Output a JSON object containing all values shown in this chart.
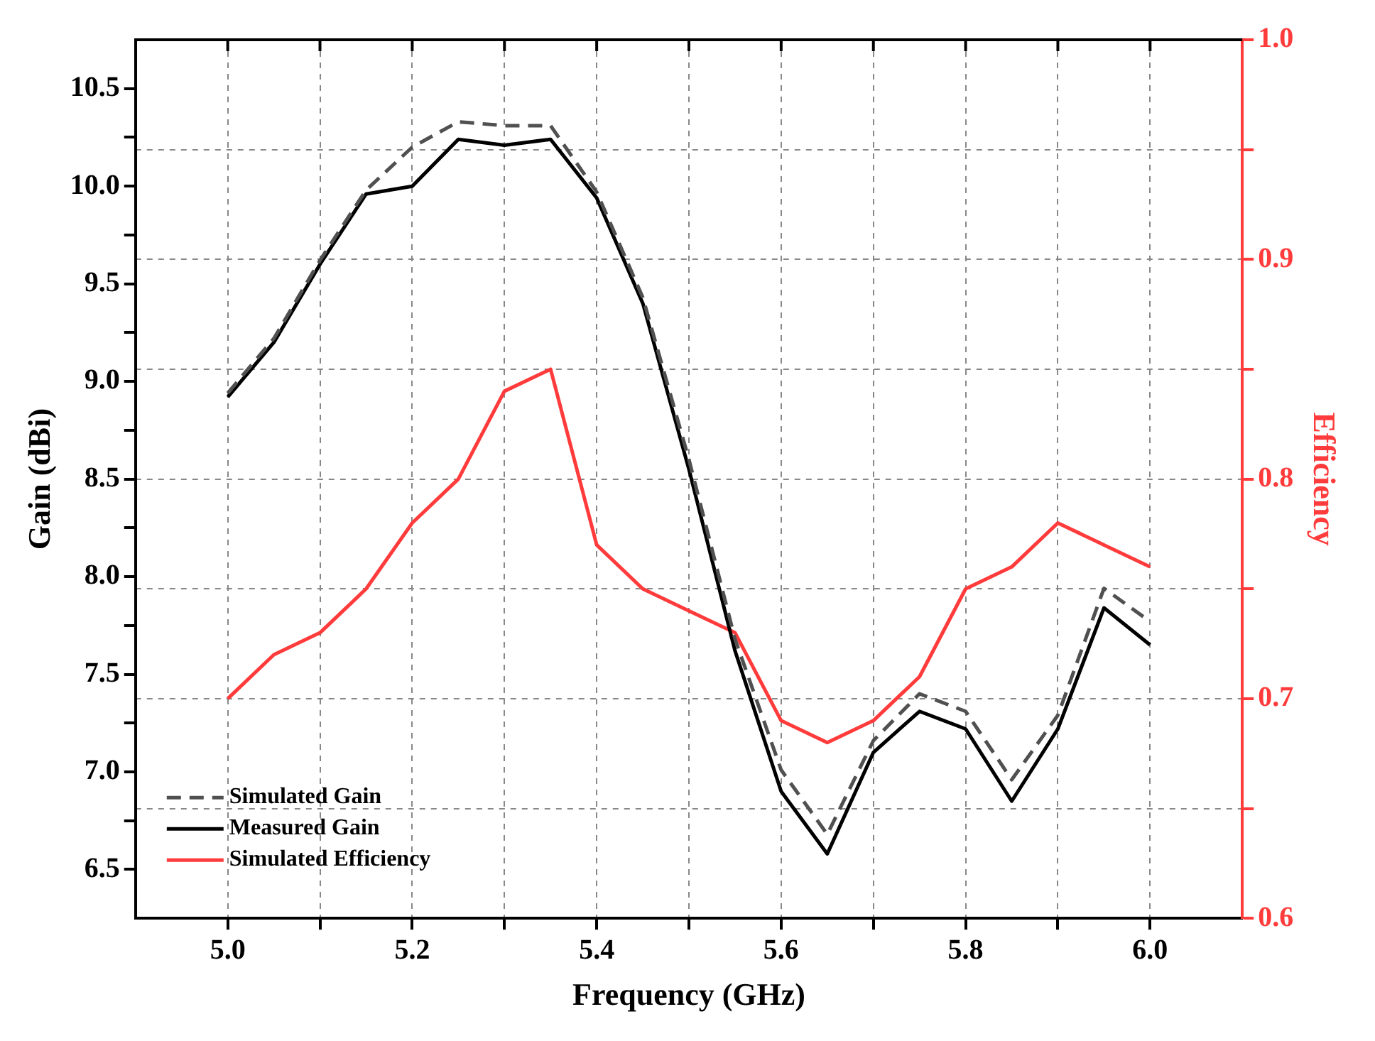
{
  "chart_data": {
    "type": "line",
    "xlabel": "Frequency (GHz)",
    "ylabel": "Gain (dBi)",
    "y2label": "Efficiency",
    "x": [
      5.0,
      5.05,
      5.1,
      5.15,
      5.2,
      5.25,
      5.3,
      5.35,
      5.4,
      5.45,
      5.5,
      5.55,
      5.6,
      5.65,
      5.7,
      5.75,
      5.8,
      5.85,
      5.9,
      5.95,
      6.0
    ],
    "series": [
      {
        "name": "Simulated Gain",
        "color": "#505050",
        "line_style": "dashed",
        "values": [
          8.94,
          9.22,
          9.62,
          9.98,
          10.2,
          10.33,
          10.31,
          10.31,
          9.97,
          9.43,
          8.6,
          7.68,
          7.01,
          6.68,
          7.16,
          7.4,
          7.31,
          6.96,
          7.29,
          7.94,
          7.77
        ]
      },
      {
        "name": "Measured Gain",
        "color": "#000000",
        "line_style": "solid",
        "values": [
          8.92,
          9.2,
          9.6,
          9.96,
          10.0,
          10.24,
          10.21,
          10.24,
          9.94,
          9.4,
          8.55,
          7.62,
          6.9,
          6.58,
          7.1,
          7.31,
          7.22,
          6.85,
          7.22,
          7.84,
          7.65
        ]
      },
      {
        "name": "Simulated Efficiency",
        "color": "#ff3b3b",
        "line_style": "solid",
        "axis": "y2",
        "values": [
          0.7,
          0.72,
          0.73,
          0.75,
          0.78,
          0.8,
          0.84,
          0.85,
          0.77,
          0.75,
          0.74,
          0.73,
          0.69,
          0.68,
          0.69,
          0.71,
          0.75,
          0.76,
          0.78,
          0.77,
          0.76
        ]
      }
    ],
    "xlim": [
      4.9,
      6.1
    ],
    "xticks": [
      {
        "value": 5.0,
        "label": "5.0"
      },
      {
        "value": 5.1,
        "label": null
      },
      5.2,
      {
        "value": 5.3,
        "label": null
      },
      5.4,
      {
        "value": 5.5,
        "label": null
      },
      5.6,
      {
        "value": 5.7,
        "label": null
      },
      5.8,
      {
        "value": 5.9,
        "label": null
      },
      {
        "value": 6.0,
        "label": "6.0"
      }
    ],
    "ylim": [
      6.25,
      10.75
    ],
    "yticks": [
      {
        "value": 6.5,
        "label": "6.5"
      },
      {
        "value": 6.75,
        "label": null
      },
      {
        "value": 7.0,
        "label": "7.0"
      },
      {
        "value": 7.25,
        "label": null
      },
      {
        "value": 7.5,
        "label": "7.5"
      },
      {
        "value": 7.75,
        "label": null
      },
      {
        "value": 8.0,
        "label": "8.0"
      },
      {
        "value": 8.25,
        "label": null
      },
      {
        "value": 8.5,
        "label": "8.5"
      },
      {
        "value": 8.75,
        "label": null
      },
      {
        "value": 9.0,
        "label": "9.0"
      },
      {
        "value": 9.25,
        "label": null
      },
      {
        "value": 9.5,
        "label": "9.5"
      },
      {
        "value": 9.75,
        "label": null
      },
      {
        "value": 10.0,
        "label": "10.0"
      },
      {
        "value": 10.25,
        "label": null
      },
      {
        "value": 10.5,
        "label": "10.5"
      }
    ],
    "y2lim": [
      0.6,
      1.0
    ],
    "y2ticks": [
      {
        "value": 0.6,
        "label": "0.6"
      },
      {
        "value": 0.65,
        "label": null
      },
      {
        "value": 0.7,
        "label": "0.7"
      },
      {
        "value": 0.75,
        "label": null
      },
      {
        "value": 0.8,
        "label": "0.8"
      },
      {
        "value": 0.85,
        "label": null
      },
      {
        "value": 0.9,
        "label": "0.9"
      },
      {
        "value": 0.95,
        "label": null
      },
      {
        "value": 1.0,
        "label": "1.0"
      }
    ],
    "grid": true,
    "legend": "bottom left",
    "marker": "none"
  }
}
